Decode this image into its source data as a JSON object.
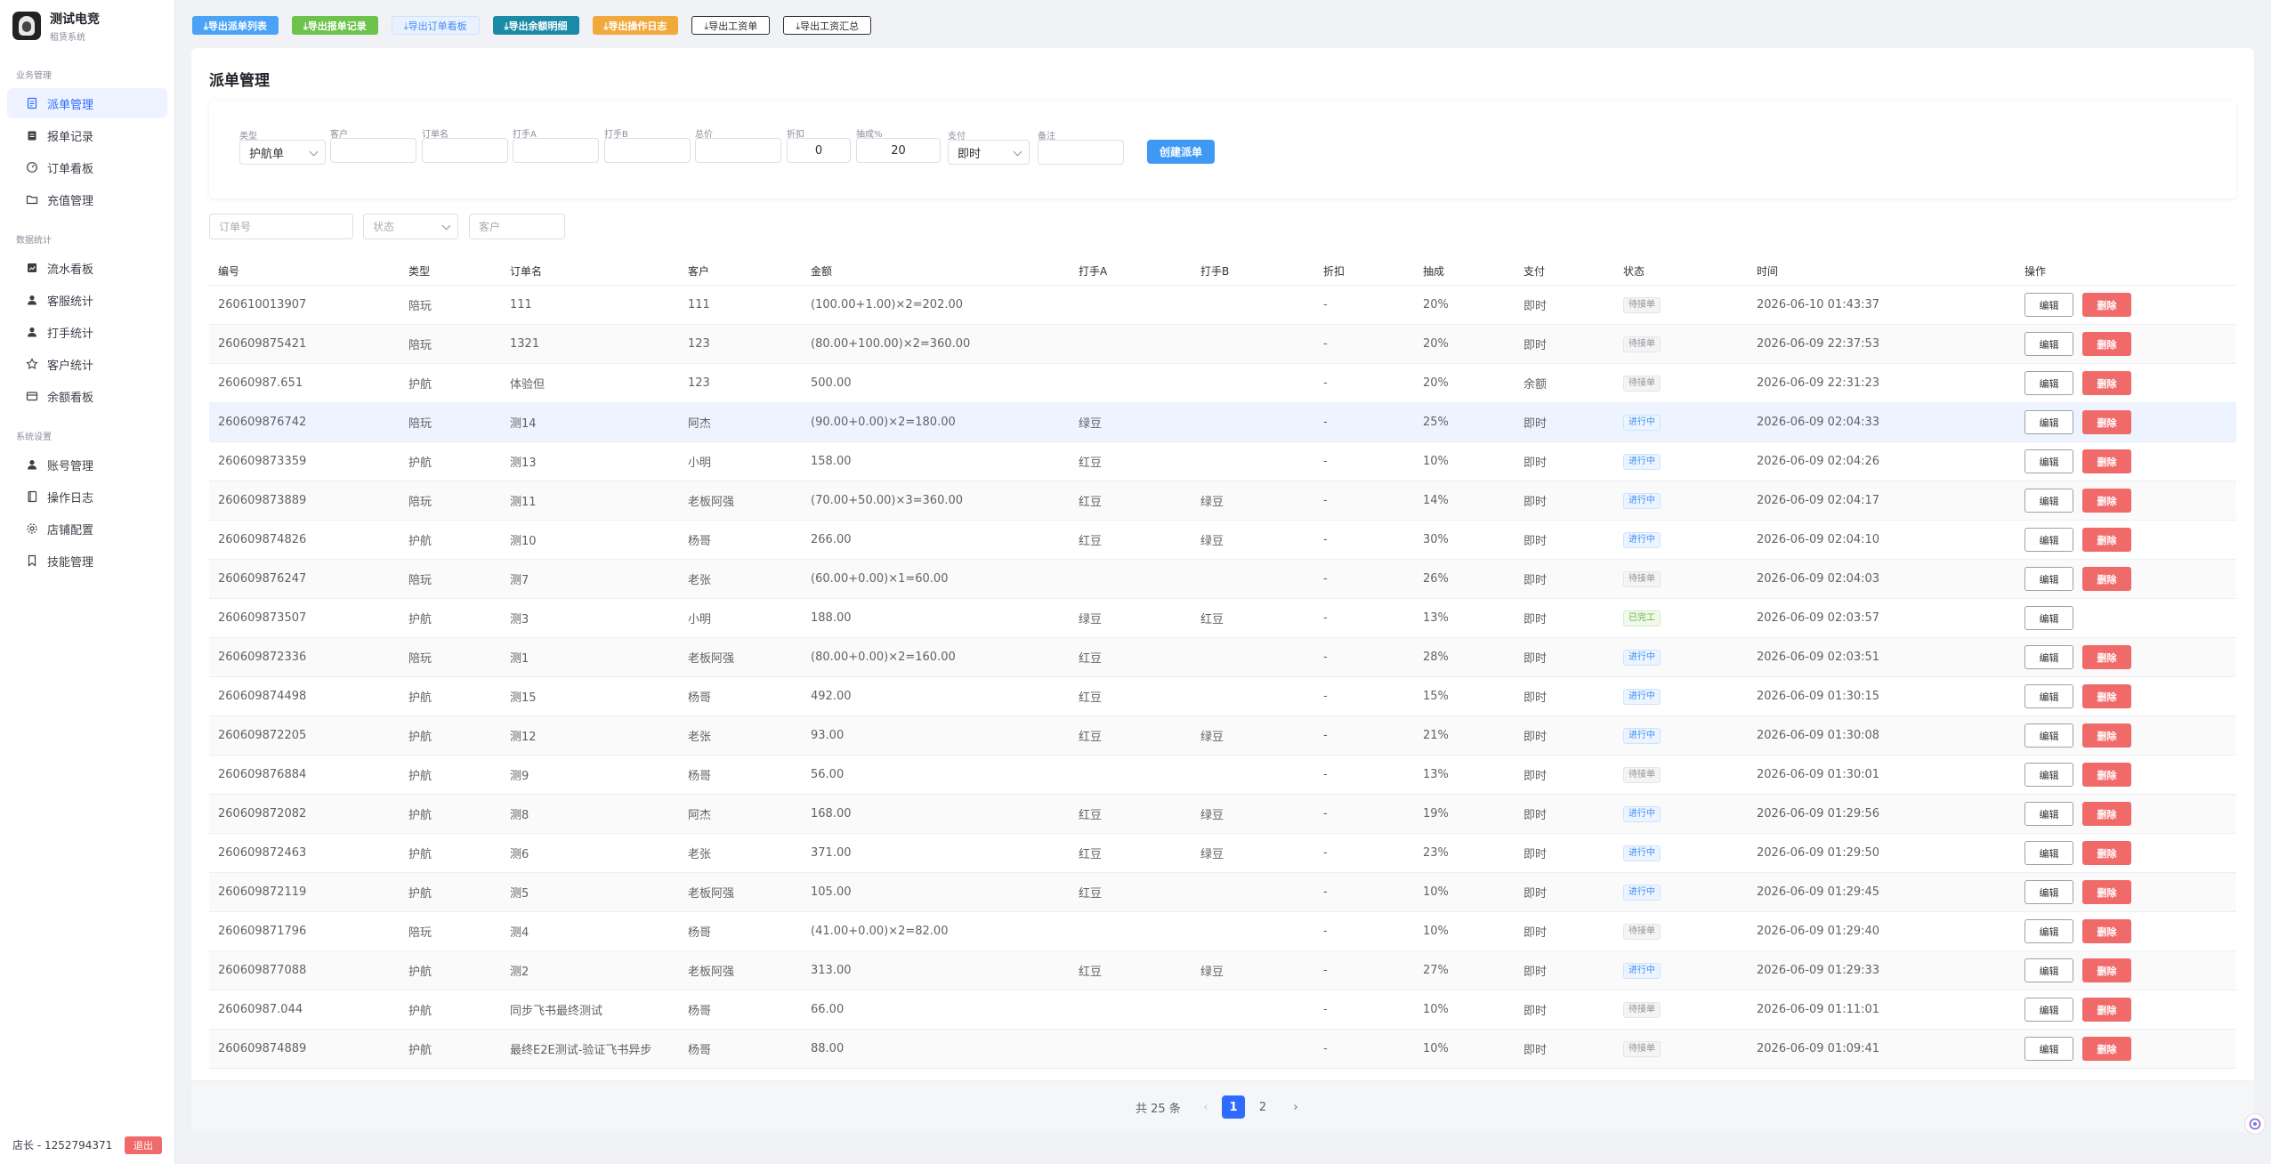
{
  "brand": {
    "name": "测试电竞",
    "subtitle": "租赁系统"
  },
  "sidebar": {
    "groups": [
      {
        "title": "业务管理",
        "items": [
          {
            "label": "派单管理",
            "icon": "document-icon",
            "active": true
          },
          {
            "label": "报单记录",
            "icon": "clipboard-icon"
          },
          {
            "label": "订单看板",
            "icon": "dashboard-icon"
          },
          {
            "label": "充值管理",
            "icon": "folder-icon"
          }
        ]
      },
      {
        "title": "数据统计",
        "items": [
          {
            "label": "流水看板",
            "icon": "chart-icon"
          },
          {
            "label": "客服统计",
            "icon": "user-icon"
          },
          {
            "label": "打手统计",
            "icon": "user-icon"
          },
          {
            "label": "客户统计",
            "icon": "star-icon"
          },
          {
            "label": "余额看板",
            "icon": "wallet-icon"
          }
        ]
      },
      {
        "title": "系统设置",
        "items": [
          {
            "label": "账号管理",
            "icon": "user-icon"
          },
          {
            "label": "操作日志",
            "icon": "book-icon"
          },
          {
            "label": "店铺配置",
            "icon": "gear-icon"
          },
          {
            "label": "技能管理",
            "icon": "bookmark-icon"
          }
        ]
      }
    ],
    "footer": {
      "user": "店长 - 1252794371",
      "logout": "退出"
    }
  },
  "exports": [
    {
      "label": "⤓导出派单列表",
      "style": "blue"
    },
    {
      "label": "⤓导出报单记录",
      "style": "green"
    },
    {
      "label": "⤓导出订单看板",
      "style": "lightblue"
    },
    {
      "label": "⤓导出余额明细",
      "style": "teal"
    },
    {
      "label": "⤓导出操作日志",
      "style": "orange"
    },
    {
      "label": "⤓导出工资单",
      "style": "outline"
    },
    {
      "label": "⤓导出工资汇总",
      "style": "outline"
    }
  ],
  "page_title": "派单管理",
  "form": {
    "type_label": "类型",
    "type_value": "护航单",
    "customer_label": "客户",
    "order_name_label": "订单名",
    "player_a_label": "打手A",
    "player_b_label": "打手B",
    "total_label": "总价",
    "discount_label": "折扣",
    "discount_value": "0",
    "commission_label": "抽成%",
    "commission_value": "20",
    "pay_label": "支付",
    "pay_value": "即时",
    "note_label": "备注",
    "create_label": "创建派单"
  },
  "filters": {
    "order_no_placeholder": "订单号",
    "status_placeholder": "状态",
    "customer_placeholder": "客户"
  },
  "table": {
    "headers": [
      "编号",
      "类型",
      "订单名",
      "客户",
      "金额",
      "打手A",
      "打手B",
      "折扣",
      "抽成",
      "支付",
      "状态",
      "时间",
      "操作"
    ],
    "edit_label": "编辑",
    "delete_label": "删除",
    "rows": [
      {
        "id": "260610013907",
        "type": "陪玩",
        "name": "111",
        "customer": "111",
        "amount": "(100.00+1.00)×2=202.00",
        "a": "",
        "b": "",
        "discount": "-",
        "commission": "20%",
        "pay": "即时",
        "status": "待接单",
        "status_kind": "wait",
        "time": "2026-06-10 01:43:37",
        "deletable": true
      },
      {
        "id": "260609875421",
        "type": "陪玩",
        "name": "1321",
        "customer": "123",
        "amount": "(80.00+100.00)×2=360.00",
        "a": "",
        "b": "",
        "discount": "-",
        "commission": "20%",
        "pay": "即时",
        "status": "待接单",
        "status_kind": "wait",
        "time": "2026-06-09 22:37:53",
        "deletable": true
      },
      {
        "id": "26060987.651",
        "type": "护航",
        "name": "体验但",
        "customer": "123",
        "amount": "500.00",
        "a": "",
        "b": "",
        "discount": "-",
        "commission": "20%",
        "pay": "余额",
        "status": "待接单",
        "status_kind": "wait",
        "time": "2026-06-09 22:31:23",
        "deletable": true
      },
      {
        "id": "260609876742",
        "type": "陪玩",
        "name": "测14",
        "customer": "阿杰",
        "amount": "(90.00+0.00)×2=180.00",
        "a": "绿豆",
        "b": "",
        "discount": "-",
        "commission": "25%",
        "pay": "即时",
        "status": "进行中",
        "status_kind": "run",
        "time": "2026-06-09 02:04:33",
        "deletable": true
      },
      {
        "id": "260609873359",
        "type": "护航",
        "name": "测13",
        "customer": "小明",
        "amount": "158.00",
        "a": "红豆",
        "b": "",
        "discount": "-",
        "commission": "10%",
        "pay": "即时",
        "status": "进行中",
        "status_kind": "run",
        "time": "2026-06-09 02:04:26",
        "deletable": true
      },
      {
        "id": "260609873889",
        "type": "陪玩",
        "name": "测11",
        "customer": "老板阿强",
        "amount": "(70.00+50.00)×3=360.00",
        "a": "红豆",
        "b": "绿豆",
        "discount": "-",
        "commission": "14%",
        "pay": "即时",
        "status": "进行中",
        "status_kind": "run",
        "time": "2026-06-09 02:04:17",
        "deletable": true
      },
      {
        "id": "260609874826",
        "type": "护航",
        "name": "测10",
        "customer": "杨哥",
        "amount": "266.00",
        "a": "红豆",
        "b": "绿豆",
        "discount": "-",
        "commission": "30%",
        "pay": "即时",
        "status": "进行中",
        "status_kind": "run",
        "time": "2026-06-09 02:04:10",
        "deletable": true
      },
      {
        "id": "260609876247",
        "type": "陪玩",
        "name": "测7",
        "customer": "老张",
        "amount": "(60.00+0.00)×1=60.00",
        "a": "",
        "b": "",
        "discount": "-",
        "commission": "26%",
        "pay": "即时",
        "status": "待接单",
        "status_kind": "wait",
        "time": "2026-06-09 02:04:03",
        "deletable": true
      },
      {
        "id": "260609873507",
        "type": "护航",
        "name": "测3",
        "customer": "小明",
        "amount": "188.00",
        "a": "绿豆",
        "b": "红豆",
        "discount": "-",
        "commission": "13%",
        "pay": "即时",
        "status": "已完工",
        "status_kind": "done",
        "time": "2026-06-09 02:03:57",
        "deletable": false
      },
      {
        "id": "260609872336",
        "type": "陪玩",
        "name": "测1",
        "customer": "老板阿强",
        "amount": "(80.00+0.00)×2=160.00",
        "a": "红豆",
        "b": "",
        "discount": "-",
        "commission": "28%",
        "pay": "即时",
        "status": "进行中",
        "status_kind": "run",
        "time": "2026-06-09 02:03:51",
        "deletable": true
      },
      {
        "id": "260609874498",
        "type": "护航",
        "name": "测15",
        "customer": "杨哥",
        "amount": "492.00",
        "a": "红豆",
        "b": "",
        "discount": "-",
        "commission": "15%",
        "pay": "即时",
        "status": "进行中",
        "status_kind": "run",
        "time": "2026-06-09 01:30:15",
        "deletable": true
      },
      {
        "id": "260609872205",
        "type": "护航",
        "name": "测12",
        "customer": "老张",
        "amount": "93.00",
        "a": "红豆",
        "b": "绿豆",
        "discount": "-",
        "commission": "21%",
        "pay": "即时",
        "status": "进行中",
        "status_kind": "run",
        "time": "2026-06-09 01:30:08",
        "deletable": true
      },
      {
        "id": "260609876884",
        "type": "护航",
        "name": "测9",
        "customer": "杨哥",
        "amount": "56.00",
        "a": "",
        "b": "",
        "discount": "-",
        "commission": "13%",
        "pay": "即时",
        "status": "待接单",
        "status_kind": "wait",
        "time": "2026-06-09 01:30:01",
        "deletable": true
      },
      {
        "id": "260609872082",
        "type": "护航",
        "name": "测8",
        "customer": "阿杰",
        "amount": "168.00",
        "a": "红豆",
        "b": "绿豆",
        "discount": "-",
        "commission": "19%",
        "pay": "即时",
        "status": "进行中",
        "status_kind": "run",
        "time": "2026-06-09 01:29:56",
        "deletable": true
      },
      {
        "id": "260609872463",
        "type": "护航",
        "name": "测6",
        "customer": "老张",
        "amount": "371.00",
        "a": "红豆",
        "b": "绿豆",
        "discount": "-",
        "commission": "23%",
        "pay": "即时",
        "status": "进行中",
        "status_kind": "run",
        "time": "2026-06-09 01:29:50",
        "deletable": true
      },
      {
        "id": "260609872119",
        "type": "护航",
        "name": "测5",
        "customer": "老板阿强",
        "amount": "105.00",
        "a": "红豆",
        "b": "",
        "discount": "-",
        "commission": "10%",
        "pay": "即时",
        "status": "进行中",
        "status_kind": "run",
        "time": "2026-06-09 01:29:45",
        "deletable": true
      },
      {
        "id": "260609871796",
        "type": "陪玩",
        "name": "测4",
        "customer": "杨哥",
        "amount": "(41.00+0.00)×2=82.00",
        "a": "",
        "b": "",
        "discount": "-",
        "commission": "10%",
        "pay": "即时",
        "status": "待接单",
        "status_kind": "wait",
        "time": "2026-06-09 01:29:40",
        "deletable": true
      },
      {
        "id": "260609877088",
        "type": "护航",
        "name": "测2",
        "customer": "老板阿强",
        "amount": "313.00",
        "a": "红豆",
        "b": "绿豆",
        "discount": "-",
        "commission": "27%",
        "pay": "即时",
        "status": "进行中",
        "status_kind": "run",
        "time": "2026-06-09 01:29:33",
        "deletable": true
      },
      {
        "id": "26060987.044",
        "type": "护航",
        "name": "同步飞书最终测试",
        "customer": "杨哥",
        "amount": "66.00",
        "a": "",
        "b": "",
        "discount": "-",
        "commission": "10%",
        "pay": "即时",
        "status": "待接单",
        "status_kind": "wait",
        "time": "2026-06-09 01:11:01",
        "deletable": true
      },
      {
        "id": "260609874889",
        "type": "护航",
        "name": "最终E2E测试-验证飞书异步",
        "customer": "杨哥",
        "amount": "88.00",
        "a": "",
        "b": "",
        "discount": "-",
        "commission": "10%",
        "pay": "即时",
        "status": "待接单",
        "status_kind": "wait",
        "time": "2026-06-09 01:09:41",
        "deletable": true
      }
    ]
  },
  "pagination": {
    "total": "共 25 条",
    "prev": "‹",
    "pages": [
      "1",
      "2"
    ],
    "current": "1",
    "next": "›"
  }
}
